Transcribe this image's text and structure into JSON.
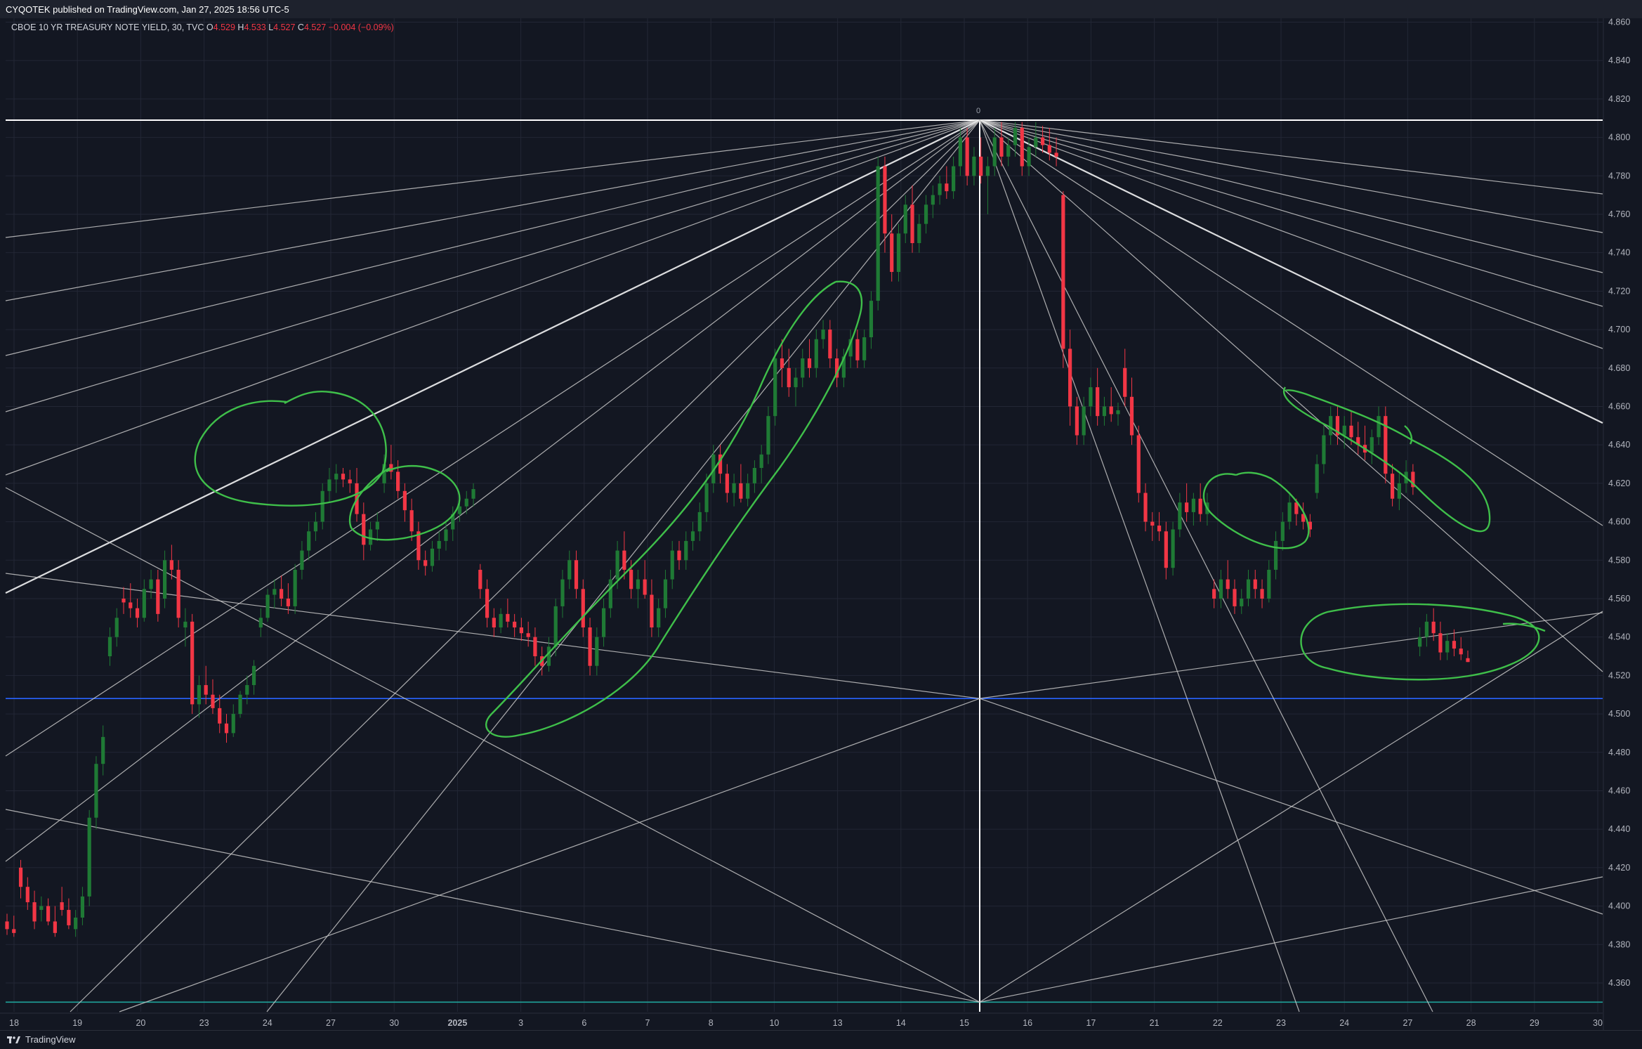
{
  "header": {
    "published": "CYQOTEK published on TradingView.com, Jan 27, 2025 18:56 UTC-5"
  },
  "legend": {
    "symbol": "CBOE 10 YR TREASURY NOTE YIELD, 30, TVC",
    "o_label": "O",
    "o": "4.529",
    "h_label": "H",
    "h": "4.533",
    "l_label": "L",
    "l": "4.527",
    "c_label": "C",
    "c": "4.527",
    "change": "−0.004 (−0.09%)"
  },
  "footer": {
    "brand": "TradingView",
    "logo_icon": "tradingview-logo-icon"
  },
  "colors": {
    "background": "#131722",
    "up": "#1f7a35",
    "down": "#f23645",
    "fan": "#c8c8c8",
    "fan_main": "#ffffff",
    "annotation": "#3fbf4a",
    "blue_line": "#2962ff",
    "teal_line": "#1fa39a"
  },
  "chart_data": {
    "type": "candlestick",
    "ylim": [
      4.345,
      4.862
    ],
    "y_ticks": [
      "4.860",
      "4.840",
      "4.820",
      "4.800",
      "4.780",
      "4.760",
      "4.740",
      "4.720",
      "4.700",
      "4.680",
      "4.660",
      "4.640",
      "4.620",
      "4.600",
      "4.580",
      "4.560",
      "4.540",
      "4.520",
      "4.500",
      "4.480",
      "4.460",
      "4.440",
      "4.420",
      "4.400",
      "4.380",
      "4.360"
    ],
    "x_ticks": [
      "18",
      "19",
      "20",
      "23",
      "24",
      "27",
      "30",
      "2025",
      "3",
      "6",
      "7",
      "8",
      "10",
      "13",
      "14",
      "15",
      "16",
      "17",
      "21",
      "22",
      "23",
      "24",
      "27",
      "28",
      "29",
      "30"
    ],
    "pivot_label": "0",
    "horizontal_levels": [
      {
        "name": "top",
        "value": 4.809
      },
      {
        "name": "mid",
        "value": 4.508
      },
      {
        "name": "bottom",
        "value": 4.35
      }
    ],
    "candles": [
      [
        4.392,
        4.396,
        4.385,
        4.388
      ],
      [
        4.388,
        4.395,
        4.384,
        4.386
      ],
      [
        4.42,
        4.424,
        4.404,
        4.41
      ],
      [
        4.41,
        4.415,
        4.398,
        4.402
      ],
      [
        4.402,
        4.408,
        4.388,
        4.392
      ],
      [
        4.398,
        4.405,
        4.392,
        4.4
      ],
      [
        4.4,
        4.404,
        4.39,
        4.392
      ],
      [
        4.392,
        4.4,
        4.384,
        4.386
      ],
      [
        4.402,
        4.41,
        4.395,
        4.398
      ],
      [
        4.398,
        4.404,
        4.388,
        4.39
      ],
      [
        4.388,
        4.398,
        4.384,
        4.394
      ],
      [
        4.394,
        4.41,
        4.39,
        4.405
      ],
      [
        4.405,
        4.45,
        4.4,
        4.446
      ],
      [
        4.446,
        4.478,
        4.44,
        4.474
      ],
      [
        4.474,
        4.494,
        4.468,
        4.488
      ],
      [
        4.53,
        4.545,
        4.525,
        4.54
      ],
      [
        4.54,
        4.555,
        4.535,
        4.55
      ],
      [
        4.56,
        4.566,
        4.552,
        4.558
      ],
      [
        4.558,
        4.568,
        4.55,
        4.555
      ],
      [
        4.555,
        4.56,
        4.545,
        4.55
      ],
      [
        4.55,
        4.57,
        4.548,
        4.565
      ],
      [
        4.565,
        4.575,
        4.56,
        4.57
      ],
      [
        4.57,
        4.575,
        4.548,
        4.552
      ],
      [
        4.56,
        4.585,
        4.555,
        4.58
      ],
      [
        4.58,
        4.588,
        4.57,
        4.575
      ],
      [
        4.575,
        4.58,
        4.545,
        4.55
      ],
      [
        4.545,
        4.555,
        4.535,
        4.548
      ],
      [
        4.548,
        4.552,
        4.5,
        4.505
      ],
      [
        4.505,
        4.52,
        4.498,
        4.515
      ],
      [
        4.515,
        4.525,
        4.505,
        4.51
      ],
      [
        4.51,
        4.518,
        4.5,
        4.503
      ],
      [
        4.503,
        4.51,
        4.49,
        4.495
      ],
      [
        4.495,
        4.5,
        4.485,
        4.49
      ],
      [
        4.49,
        4.505,
        4.488,
        4.5
      ],
      [
        4.5,
        4.512,
        4.498,
        4.51
      ],
      [
        4.51,
        4.52,
        4.505,
        4.515
      ],
      [
        4.515,
        4.528,
        4.51,
        4.525
      ],
      [
        4.545,
        4.555,
        4.54,
        4.55
      ],
      [
        4.55,
        4.565,
        4.548,
        4.562
      ],
      [
        4.562,
        4.57,
        4.555,
        4.565
      ],
      [
        4.565,
        4.572,
        4.556,
        4.56
      ],
      [
        4.56,
        4.568,
        4.552,
        4.556
      ],
      [
        4.556,
        4.578,
        4.552,
        4.575
      ],
      [
        4.575,
        4.59,
        4.57,
        4.585
      ],
      [
        4.585,
        4.6,
        4.58,
        4.595
      ],
      [
        4.595,
        4.605,
        4.59,
        4.6
      ],
      [
        4.6,
        4.62,
        4.596,
        4.616
      ],
      [
        4.616,
        4.628,
        4.61,
        4.622
      ],
      [
        4.622,
        4.63,
        4.615,
        4.625
      ],
      [
        4.625,
        4.628,
        4.618,
        4.622
      ],
      [
        4.622,
        4.627,
        4.615,
        4.62
      ],
      [
        4.62,
        4.628,
        4.6,
        4.604
      ],
      [
        4.604,
        4.61,
        4.58,
        4.588
      ],
      [
        4.588,
        4.6,
        4.585,
        4.596
      ],
      [
        4.596,
        4.605,
        4.59,
        4.6
      ],
      [
        4.62,
        4.635,
        4.615,
        4.63
      ],
      [
        4.63,
        4.64,
        4.622,
        4.626
      ],
      [
        4.626,
        4.632,
        4.612,
        4.616
      ],
      [
        4.616,
        4.62,
        4.6,
        4.606
      ],
      [
        4.606,
        4.612,
        4.59,
        4.595
      ],
      [
        4.595,
        4.6,
        4.575,
        4.58
      ],
      [
        4.58,
        4.585,
        4.572,
        4.577
      ],
      [
        4.577,
        4.59,
        4.574,
        4.586
      ],
      [
        4.586,
        4.595,
        4.58,
        4.59
      ],
      [
        4.59,
        4.6,
        4.585,
        4.596
      ],
      [
        4.596,
        4.608,
        4.59,
        4.604
      ],
      [
        4.604,
        4.612,
        4.6,
        4.608
      ],
      [
        4.608,
        4.616,
        4.604,
        4.612
      ],
      [
        4.612,
        4.62,
        4.608,
        4.617
      ],
      [
        4.575,
        4.578,
        4.56,
        4.565
      ],
      [
        4.565,
        4.57,
        4.545,
        4.55
      ],
      [
        4.55,
        4.555,
        4.54,
        4.545
      ],
      [
        4.545,
        4.555,
        4.542,
        4.552
      ],
      [
        4.552,
        4.56,
        4.545,
        4.548
      ],
      [
        4.548,
        4.552,
        4.54,
        4.545
      ],
      [
        4.545,
        4.55,
        4.538,
        4.542
      ],
      [
        4.542,
        4.548,
        4.535,
        4.54
      ],
      [
        4.54,
        4.545,
        4.525,
        4.53
      ],
      [
        4.53,
        4.535,
        4.52,
        4.525
      ],
      [
        4.525,
        4.54,
        4.522,
        4.535
      ],
      [
        4.535,
        4.56,
        4.53,
        4.556
      ],
      [
        4.556,
        4.575,
        4.55,
        4.57
      ],
      [
        4.57,
        4.585,
        4.565,
        4.58
      ],
      [
        4.58,
        4.585,
        4.56,
        4.565
      ],
      [
        4.565,
        4.57,
        4.54,
        4.545
      ],
      [
        4.545,
        4.55,
        4.52,
        4.525
      ],
      [
        4.525,
        4.545,
        4.52,
        4.54
      ],
      [
        4.54,
        4.56,
        4.535,
        4.555
      ],
      [
        4.555,
        4.575,
        4.55,
        4.57
      ],
      [
        4.57,
        4.59,
        4.565,
        4.585
      ],
      [
        4.585,
        4.595,
        4.57,
        4.575
      ],
      [
        4.575,
        4.58,
        4.56,
        4.565
      ],
      [
        4.565,
        4.575,
        4.555,
        4.57
      ],
      [
        4.57,
        4.58,
        4.56,
        4.562
      ],
      [
        4.562,
        4.57,
        4.54,
        4.545
      ],
      [
        4.545,
        4.56,
        4.54,
        4.555
      ],
      [
        4.555,
        4.575,
        4.55,
        4.57
      ],
      [
        4.57,
        4.59,
        4.565,
        4.585
      ],
      [
        4.585,
        4.59,
        4.575,
        4.58
      ],
      [
        4.58,
        4.595,
        4.575,
        4.59
      ],
      [
        4.59,
        4.6,
        4.585,
        4.595
      ],
      [
        4.595,
        4.61,
        4.59,
        4.605
      ],
      [
        4.605,
        4.625,
        4.6,
        4.62
      ],
      [
        4.62,
        4.64,
        4.615,
        4.635
      ],
      [
        4.635,
        4.64,
        4.62,
        4.625
      ],
      [
        4.625,
        4.63,
        4.61,
        4.615
      ],
      [
        4.615,
        4.625,
        4.608,
        4.62
      ],
      [
        4.62,
        4.63,
        4.61,
        4.612
      ],
      [
        4.612,
        4.625,
        4.608,
        4.62
      ],
      [
        4.62,
        4.632,
        4.615,
        4.628
      ],
      [
        4.628,
        4.64,
        4.62,
        4.635
      ],
      [
        4.635,
        4.66,
        4.63,
        4.655
      ],
      [
        4.655,
        4.69,
        4.65,
        4.685
      ],
      [
        4.685,
        4.695,
        4.67,
        4.68
      ],
      [
        4.68,
        4.69,
        4.665,
        4.67
      ],
      [
        4.67,
        4.68,
        4.66,
        4.675
      ],
      [
        4.675,
        4.69,
        4.67,
        4.685
      ],
      [
        4.685,
        4.695,
        4.675,
        4.68
      ],
      [
        4.68,
        4.7,
        4.675,
        4.695
      ],
      [
        4.695,
        4.705,
        4.69,
        4.7
      ],
      [
        4.7,
        4.705,
        4.68,
        4.685
      ],
      [
        4.685,
        4.69,
        4.67,
        4.675
      ],
      [
        4.675,
        4.69,
        4.67,
        4.686
      ],
      [
        4.686,
        4.7,
        4.68,
        4.695
      ],
      [
        4.695,
        4.7,
        4.68,
        4.684
      ],
      [
        4.684,
        4.7,
        4.68,
        4.696
      ],
      [
        4.696,
        4.72,
        4.69,
        4.715
      ],
      [
        4.715,
        4.79,
        4.71,
        4.785
      ],
      [
        4.785,
        4.79,
        4.74,
        4.75
      ],
      [
        4.75,
        4.76,
        4.725,
        4.73
      ],
      [
        4.73,
        4.755,
        4.725,
        4.75
      ],
      [
        4.75,
        4.77,
        4.745,
        4.765
      ],
      [
        4.765,
        4.775,
        4.74,
        4.745
      ],
      [
        4.745,
        4.76,
        4.74,
        4.755
      ],
      [
        4.755,
        4.77,
        4.75,
        4.765
      ],
      [
        4.765,
        4.775,
        4.758,
        4.77
      ],
      [
        4.77,
        4.78,
        4.765,
        4.776
      ],
      [
        4.776,
        4.785,
        4.768,
        4.772
      ],
      [
        4.772,
        4.79,
        4.768,
        4.785
      ],
      [
        4.785,
        4.805,
        4.78,
        4.8
      ],
      [
        4.8,
        4.805,
        4.775,
        4.78
      ],
      [
        4.78,
        4.795,
        4.775,
        4.79
      ],
      [
        4.79,
        4.8,
        4.776,
        4.78
      ],
      [
        4.78,
        4.79,
        4.76,
        4.785
      ],
      [
        4.785,
        4.805,
        4.78,
        4.8
      ],
      [
        4.8,
        4.808,
        4.785,
        4.79
      ],
      [
        4.79,
        4.8,
        4.785,
        4.796
      ],
      [
        4.796,
        4.808,
        4.79,
        4.805
      ],
      [
        4.805,
        4.808,
        4.78,
        4.785
      ],
      [
        4.785,
        4.8,
        4.78,
        4.795
      ],
      [
        4.795,
        4.808,
        4.79,
        4.8
      ],
      [
        4.8,
        4.806,
        4.792,
        4.796
      ],
      [
        4.796,
        4.805,
        4.788,
        4.792
      ],
      [
        4.792,
        4.8,
        4.785,
        4.79
      ],
      [
        4.77,
        4.772,
        4.68,
        4.69
      ],
      [
        4.69,
        4.7,
        4.65,
        4.66
      ],
      [
        4.66,
        4.665,
        4.64,
        4.645
      ],
      [
        4.645,
        4.665,
        4.64,
        4.66
      ],
      [
        4.66,
        4.675,
        4.655,
        4.67
      ],
      [
        4.67,
        4.68,
        4.65,
        4.655
      ],
      [
        4.655,
        4.665,
        4.65,
        4.66
      ],
      [
        4.66,
        4.67,
        4.652,
        4.656
      ],
      [
        4.656,
        4.662,
        4.65,
        4.658
      ],
      [
        4.68,
        4.69,
        4.66,
        4.665
      ],
      [
        4.665,
        4.675,
        4.64,
        4.645
      ],
      [
        4.645,
        4.65,
        4.61,
        4.615
      ],
      [
        4.615,
        4.62,
        4.595,
        4.6
      ],
      [
        4.6,
        4.605,
        4.59,
        4.598
      ],
      [
        4.598,
        4.605,
        4.59,
        4.595
      ],
      [
        4.595,
        4.6,
        4.57,
        4.576
      ],
      [
        4.576,
        4.6,
        4.572,
        4.596
      ],
      [
        4.596,
        4.615,
        4.592,
        4.61
      ],
      [
        4.61,
        4.62,
        4.6,
        4.605
      ],
      [
        4.605,
        4.615,
        4.598,
        4.612
      ],
      [
        4.612,
        4.62,
        4.6,
        4.604
      ],
      [
        4.604,
        4.615,
        4.598,
        4.61
      ],
      [
        4.565,
        4.57,
        4.555,
        4.56
      ],
      [
        4.56,
        4.575,
        4.555,
        4.57
      ],
      [
        4.57,
        4.58,
        4.56,
        4.565
      ],
      [
        4.565,
        4.57,
        4.552,
        4.556
      ],
      [
        4.556,
        4.565,
        4.552,
        4.56
      ],
      [
        4.56,
        4.575,
        4.556,
        4.57
      ],
      [
        4.57,
        4.575,
        4.56,
        4.565
      ],
      [
        4.565,
        4.57,
        4.555,
        4.56
      ],
      [
        4.56,
        4.58,
        4.558,
        4.575
      ],
      [
        4.575,
        4.595,
        4.57,
        4.59
      ],
      [
        4.59,
        4.605,
        4.585,
        4.6
      ],
      [
        4.6,
        4.615,
        4.596,
        4.61
      ],
      [
        4.61,
        4.612,
        4.598,
        4.604
      ],
      [
        4.604,
        4.61,
        4.596,
        4.6
      ],
      [
        4.6,
        4.604,
        4.592,
        4.596
      ],
      [
        4.615,
        4.635,
        4.612,
        4.63
      ],
      [
        4.63,
        4.65,
        4.625,
        4.645
      ],
      [
        4.645,
        4.66,
        4.64,
        4.655
      ],
      [
        4.655,
        4.66,
        4.64,
        4.645
      ],
      [
        4.645,
        4.655,
        4.638,
        4.65
      ],
      [
        4.65,
        4.658,
        4.64,
        4.644
      ],
      [
        4.644,
        4.652,
        4.635,
        4.64
      ],
      [
        4.64,
        4.65,
        4.632,
        4.636
      ],
      [
        4.636,
        4.648,
        4.63,
        4.644
      ],
      [
        4.644,
        4.66,
        4.64,
        4.655
      ],
      [
        4.655,
        4.66,
        4.62,
        4.625
      ],
      [
        4.625,
        4.63,
        4.608,
        4.612
      ],
      [
        4.612,
        4.625,
        4.606,
        4.62
      ],
      [
        4.62,
        4.632,
        4.615,
        4.626
      ],
      [
        4.626,
        4.63,
        4.614,
        4.618
      ],
      [
        4.535,
        4.545,
        4.53,
        4.54
      ],
      [
        4.54,
        4.552,
        4.535,
        4.548
      ],
      [
        4.548,
        4.555,
        4.538,
        4.542
      ],
      [
        4.542,
        4.548,
        4.528,
        4.532
      ],
      [
        4.532,
        4.542,
        4.528,
        4.538
      ],
      [
        4.538,
        4.544,
        4.53,
        4.534
      ],
      [
        4.534,
        4.54,
        4.528,
        4.531
      ],
      [
        4.529,
        4.533,
        4.527,
        4.527
      ]
    ]
  }
}
